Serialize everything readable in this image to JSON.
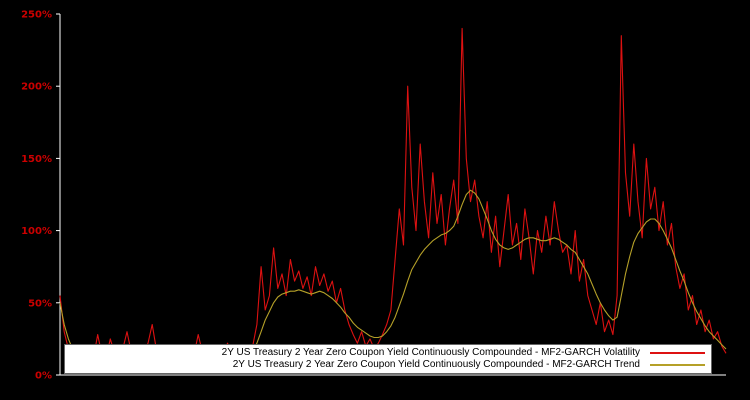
{
  "page": {
    "background": "#000000"
  },
  "axis": {
    "tick_color": "#cc0000",
    "spine_color": "#ffffff"
  },
  "legend": {
    "background": "#ffffff",
    "border_color": "#666666"
  },
  "chart_data": {
    "type": "line",
    "title": "",
    "xlabel": "",
    "ylabel": "",
    "ylim": [
      0,
      250
    ],
    "grid": false,
    "legend_position": "bottom-center",
    "ytick_values": [
      0,
      50,
      100,
      150,
      200,
      250
    ],
    "ytick_labels": [
      "0%",
      "50%",
      "100%",
      "150%",
      "200%",
      "250%"
    ],
    "x_axis_labels_visible": false,
    "series": [
      {
        "name": "2Y US Treasury 2 Year Zero Coupon Yield Continuously Compounded - MF2-GARCH Volatility",
        "color": "#dd1111",
        "unit": "%",
        "values": [
          55,
          30,
          18,
          14,
          12,
          11,
          13,
          10,
          12,
          28,
          14,
          12,
          25,
          15,
          12,
          18,
          30,
          16,
          13,
          12,
          15,
          22,
          35,
          18,
          14,
          13,
          16,
          12,
          20,
          15,
          13,
          12,
          14,
          28,
          16,
          13,
          15,
          12,
          14,
          13,
          22,
          16,
          14,
          13,
          15,
          14,
          20,
          35,
          75,
          45,
          55,
          88,
          60,
          70,
          55,
          80,
          65,
          72,
          60,
          68,
          55,
          75,
          62,
          70,
          58,
          65,
          50,
          60,
          45,
          35,
          28,
          22,
          30,
          20,
          25,
          18,
          22,
          28,
          35,
          45,
          80,
          115,
          90,
          200,
          130,
          100,
          160,
          120,
          95,
          140,
          105,
          125,
          90,
          115,
          135,
          105,
          240,
          150,
          120,
          135,
          110,
          95,
          120,
          85,
          110,
          75,
          100,
          125,
          90,
          105,
          80,
          115,
          95,
          70,
          100,
          85,
          110,
          90,
          120,
          100,
          85,
          90,
          70,
          100,
          65,
          80,
          55,
          45,
          35,
          50,
          30,
          38,
          28,
          55,
          235,
          140,
          110,
          160,
          120,
          95,
          150,
          115,
          130,
          100,
          120,
          90,
          105,
          75,
          60,
          70,
          45,
          55,
          35,
          45,
          30,
          38,
          25,
          30,
          20,
          15
        ]
      },
      {
        "name": "2Y US Treasury 2 Year Zero Coupon Yield Continuously Compounded - MF2-GARCH Trend",
        "color": "#b5a028",
        "unit": "%",
        "values": [
          50,
          35,
          25,
          18,
          15,
          14,
          14,
          13,
          13,
          14,
          15,
          14,
          14,
          15,
          14,
          14,
          15,
          16,
          15,
          14,
          14,
          15,
          17,
          16,
          15,
          14,
          14,
          14,
          15,
          15,
          14,
          14,
          14,
          15,
          16,
          15,
          14,
          14,
          14,
          14,
          15,
          14,
          14,
          14,
          15,
          15,
          17,
          22,
          30,
          38,
          44,
          50,
          54,
          56,
          57,
          58,
          58,
          59,
          58,
          57,
          56,
          57,
          58,
          57,
          55,
          53,
          50,
          47,
          43,
          40,
          36,
          33,
          31,
          29,
          27,
          26,
          26,
          27,
          30,
          34,
          40,
          48,
          56,
          65,
          73,
          78,
          83,
          87,
          90,
          93,
          95,
          97,
          98,
          100,
          103,
          110,
          118,
          125,
          128,
          126,
          122,
          115,
          108,
          100,
          94,
          90,
          88,
          87,
          88,
          90,
          92,
          94,
          95,
          95,
          94,
          93,
          93,
          94,
          95,
          94,
          92,
          90,
          87,
          85,
          80,
          75,
          70,
          63,
          56,
          50,
          45,
          41,
          38,
          40,
          55,
          70,
          82,
          92,
          98,
          102,
          106,
          108,
          108,
          105,
          100,
          94,
          88,
          80,
          72,
          65,
          57,
          50,
          44,
          39,
          34,
          30,
          27,
          24,
          21,
          18
        ]
      }
    ]
  }
}
